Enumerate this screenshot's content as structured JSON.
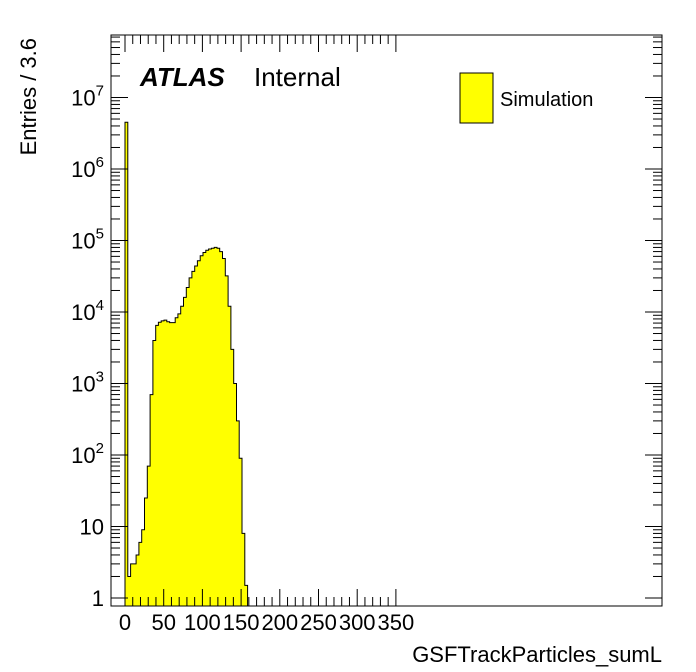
{
  "chart_data": {
    "type": "bar",
    "style": "histogram",
    "title": "",
    "xlabel": "GSFTrackParticles_sumL",
    "ylabel": "Entries / 3.6",
    "xlim": [
      -3.6,
      352
    ],
    "ylim": [
      0.8,
      80000000
    ],
    "yscale": "log",
    "bin_width": 3.6,
    "bin_start": -3.6,
    "series": [
      {
        "name": "Simulation",
        "color": "#ffff00",
        "edgecolor": "#000000",
        "values": [
          0,
          4500000,
          2,
          3,
          3,
          4,
          6,
          9,
          25,
          70,
          700,
          4000,
          6500,
          7200,
          7500,
          7700,
          7300,
          7100,
          7100,
          8300,
          9400,
          12000,
          16000,
          22000,
          30000,
          37000,
          44000,
          52000,
          61000,
          68000,
          73000,
          76000,
          78000,
          80000,
          78000,
          70000,
          56000,
          32000,
          12000,
          3000,
          1000,
          300,
          90,
          8,
          1.5,
          0,
          0
        ]
      }
    ],
    "xticks": [
      "0",
      "50",
      "100",
      "150",
      "200",
      "250",
      "300",
      "350"
    ],
    "xtick_values": [
      0,
      50,
      100,
      150,
      200,
      250,
      300,
      350
    ],
    "yticks": [
      "1",
      "10",
      "10^2",
      "10^3",
      "10^4",
      "10^5",
      "10^6",
      "10^7"
    ],
    "ytick_values": [
      1,
      10,
      100,
      1000,
      10000,
      100000,
      1000000,
      10000000
    ],
    "legend": {
      "entries": [
        "Simulation"
      ],
      "placement": "top-right"
    },
    "annotations": {
      "atlas": "ATLAS",
      "label": "Internal"
    },
    "grid": false
  }
}
